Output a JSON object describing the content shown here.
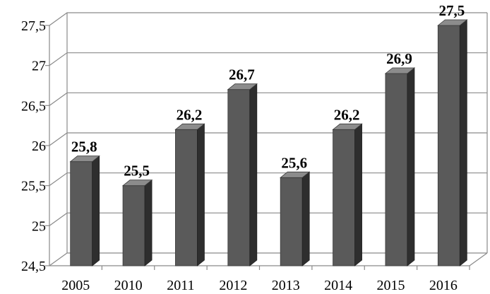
{
  "chart_data": {
    "type": "bar",
    "categories": [
      "2005",
      "2010",
      "2011",
      "2012",
      "2013",
      "2014",
      "2015",
      "2016"
    ],
    "values": [
      25.8,
      25.5,
      26.2,
      26.7,
      25.6,
      26.2,
      26.9,
      27.5
    ],
    "data_labels": [
      "25,8",
      "25,5",
      "26,2",
      "26,7",
      "25,6",
      "26,2",
      "26,9",
      "27,5"
    ],
    "ylim": [
      24.5,
      27.5
    ],
    "yticks": [
      24.5,
      25,
      25.5,
      26,
      26.5,
      27,
      27.5
    ],
    "ytick_labels": [
      "24,5",
      "25",
      "25,5",
      "26",
      "26,5",
      "27",
      "27,5"
    ],
    "title": "",
    "xlabel": "",
    "ylabel": "",
    "grid": true,
    "legend": "none",
    "style": "3d",
    "colors": {
      "bar_front": "#5a5a5a",
      "bar_side": "#2e2e2e",
      "bar_top": "#8c8c8c",
      "grid": "#8a8a8a"
    }
  }
}
